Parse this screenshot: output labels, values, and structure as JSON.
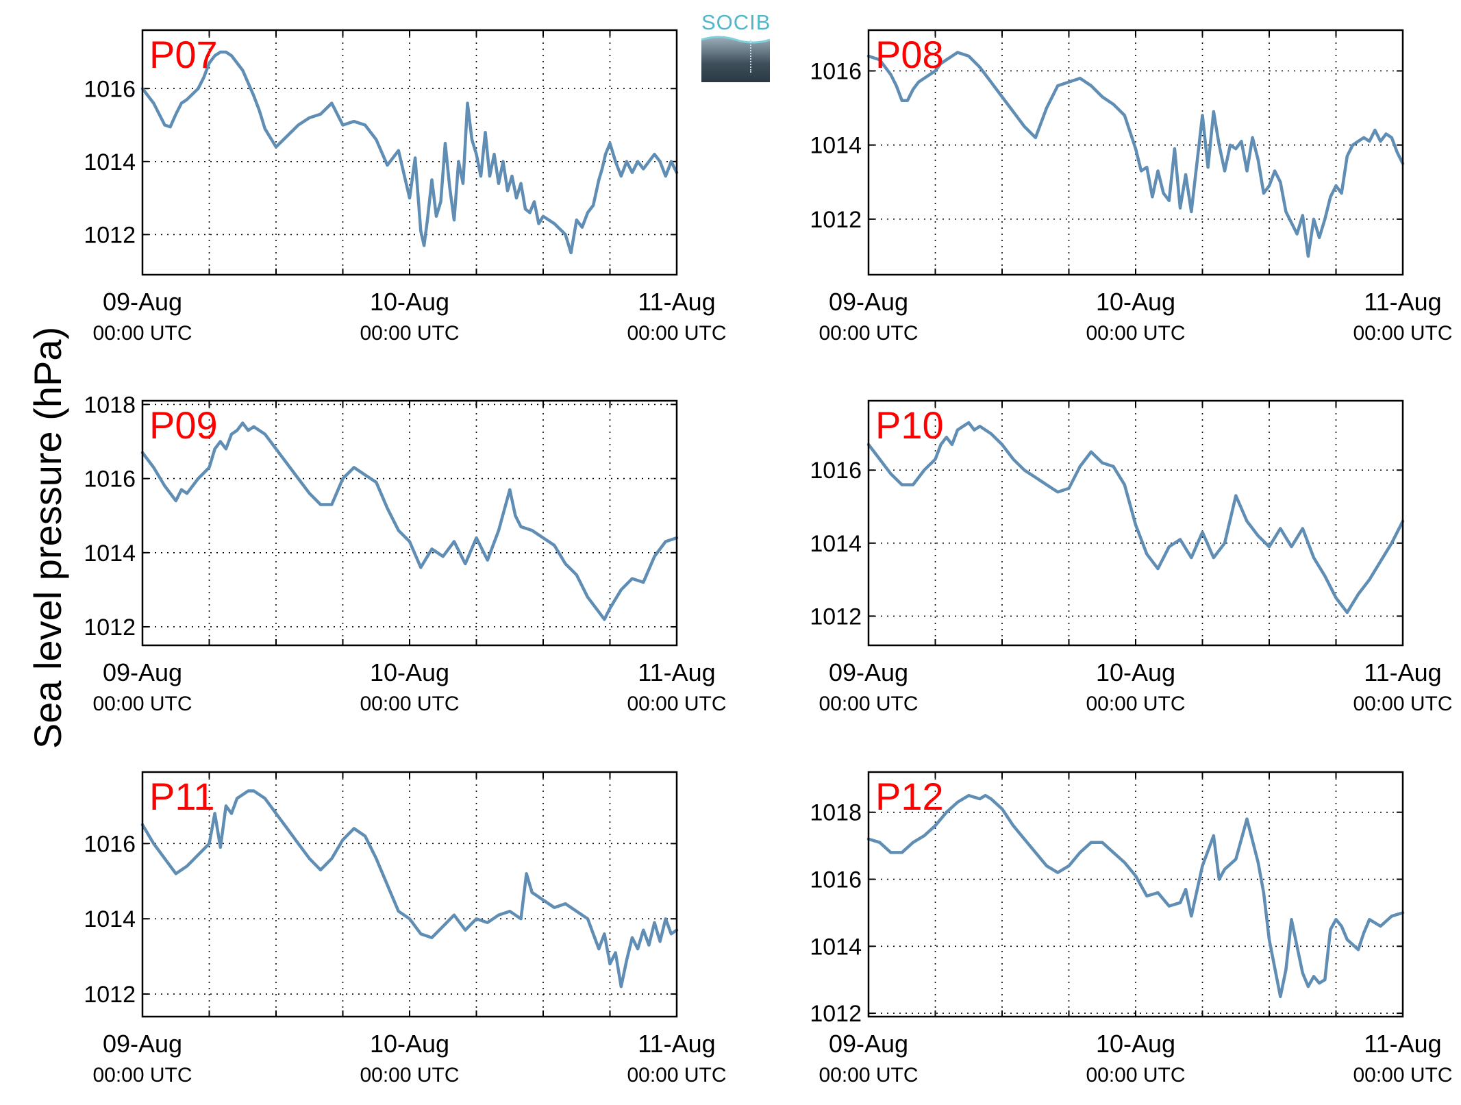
{
  "figure": {
    "ylabel": "Sea level pressure (hPa)",
    "logo": {
      "text": "SOCIB",
      "colors": {
        "text": "#4fb7c9",
        "box_top": "#9fb3bd",
        "box_bottom": "#2a3842"
      }
    }
  },
  "style": {
    "line_color": "#5f8db3",
    "panel_label_color": "#ff0000",
    "grid": "dotted"
  },
  "chart_data": [
    {
      "type": "line",
      "panel_label": "P07",
      "xlim": [
        "09-Aug 00:00",
        "11-Aug 00:00"
      ],
      "ylim": [
        1010.9,
        1017.6
      ],
      "yticks": [
        1012,
        1014,
        1016
      ],
      "xtick_labels": [
        {
          "x": 0,
          "date": "09-Aug",
          "time": "00:00 UTC"
        },
        {
          "x": 24,
          "date": "10-Aug",
          "time": "00:00 UTC"
        },
        {
          "x": 48,
          "date": "11-Aug",
          "time": "00:00 UTC"
        }
      ],
      "series": [
        {
          "x_unit": "hours since 09-Aug 00:00 UTC",
          "x": [
            0,
            1,
            2,
            2.5,
            3,
            3.5,
            4,
            5,
            5.5,
            6,
            6.5,
            7,
            7.5,
            8,
            9,
            10,
            10.5,
            11,
            12,
            13,
            14,
            15,
            16,
            17,
            18,
            19,
            20,
            21,
            22,
            23,
            24,
            24.5,
            25,
            25.3,
            25.6,
            26,
            26.4,
            26.8,
            27.2,
            27.6,
            28,
            28.4,
            28.8,
            29.2,
            29.6,
            30,
            30.4,
            30.8,
            31.2,
            31.6,
            32,
            32.4,
            32.8,
            33.2,
            33.6,
            34,
            34.4,
            34.8,
            35.2,
            35.6,
            36,
            37,
            38,
            38.5,
            39,
            39.5,
            40,
            40.5,
            41,
            41.3,
            41.6,
            42,
            42.5,
            43,
            43.5,
            44,
            44.5,
            45,
            46,
            46.5,
            47,
            47.5,
            48
          ],
          "y": [
            1016,
            1015.6,
            1015,
            1014.95,
            1015.3,
            1015.6,
            1015.7,
            1016,
            1016.3,
            1016.7,
            1016.9,
            1017,
            1017,
            1016.9,
            1016.5,
            1015.8,
            1015.4,
            1014.9,
            1014.4,
            1014.7,
            1015,
            1015.2,
            1015.3,
            1015.6,
            1015,
            1015.1,
            1015,
            1014.6,
            1013.9,
            1014.3,
            1013,
            1014.1,
            1012.1,
            1011.7,
            1012.4,
            1013.5,
            1012.5,
            1012.9,
            1014.5,
            1013.3,
            1012.4,
            1014,
            1013.4,
            1015.6,
            1014.6,
            1014.2,
            1013.6,
            1014.8,
            1013.6,
            1014.2,
            1013.4,
            1014,
            1013.2,
            1013.6,
            1013,
            1013.4,
            1012.7,
            1012.6,
            1012.9,
            1012.3,
            1012.5,
            1012.3,
            1012,
            1011.5,
            1012.4,
            1012.2,
            1012.6,
            1012.8,
            1013.5,
            1013.8,
            1014.2,
            1014.5,
            1014,
            1013.6,
            1014,
            1013.7,
            1014,
            1013.8,
            1014.2,
            1014,
            1013.6,
            1014,
            1013.7
          ]
        }
      ]
    },
    {
      "type": "line",
      "panel_label": "P08",
      "xlim": [
        "09-Aug 00:00",
        "11-Aug 00:00"
      ],
      "ylim": [
        1010.5,
        1017.1
      ],
      "yticks": [
        1012,
        1014,
        1016
      ],
      "xtick_labels": [
        {
          "x": 0,
          "date": "09-Aug",
          "time": "00:00 UTC"
        },
        {
          "x": 24,
          "date": "10-Aug",
          "time": "00:00 UTC"
        },
        {
          "x": 48,
          "date": "11-Aug",
          "time": "00:00 UTC"
        }
      ],
      "series": [
        {
          "x_unit": "hours since 09-Aug 00:00 UTC",
          "x": [
            0,
            1,
            2,
            2.5,
            3,
            3.5,
            4,
            4.5,
            5,
            5.5,
            6,
            6.5,
            7,
            7.5,
            8,
            9,
            10,
            11,
            12,
            13,
            14,
            15,
            16,
            17,
            18,
            19,
            20,
            21,
            22,
            23,
            24,
            24.5,
            25,
            25.5,
            26,
            26.5,
            27,
            27.5,
            28,
            28.5,
            29,
            29.5,
            30,
            30.5,
            31,
            31.5,
            32,
            32.5,
            33,
            33.5,
            34,
            34.5,
            35,
            35.5,
            36,
            36.5,
            37,
            37.5,
            38,
            38.5,
            39,
            39.5,
            40,
            40.5,
            41,
            41.5,
            42,
            42.5,
            43,
            43.5,
            44,
            44.5,
            45,
            45.5,
            46,
            46.5,
            47,
            47.5,
            48
          ],
          "y": [
            1016.4,
            1016.3,
            1015.9,
            1015.6,
            1015.2,
            1015.2,
            1015.5,
            1015.7,
            1015.8,
            1015.9,
            1016,
            1016.2,
            1016.3,
            1016.4,
            1016.5,
            1016.4,
            1016.1,
            1015.7,
            1015.3,
            1014.9,
            1014.5,
            1014.2,
            1015,
            1015.6,
            1015.7,
            1015.8,
            1015.6,
            1015.3,
            1015.1,
            1014.8,
            1013.9,
            1013.3,
            1013.4,
            1012.6,
            1013.3,
            1012.7,
            1012.5,
            1013.9,
            1012.3,
            1013.2,
            1012.2,
            1013.5,
            1014.8,
            1013.4,
            1014.9,
            1014,
            1013.3,
            1014,
            1013.9,
            1014.1,
            1013.3,
            1014.2,
            1013.6,
            1012.7,
            1012.9,
            1013.3,
            1013,
            1012.2,
            1011.9,
            1011.6,
            1012.1,
            1011,
            1012,
            1011.5,
            1012,
            1012.6,
            1012.9,
            1012.7,
            1013.7,
            1014,
            1014.1,
            1014.2,
            1014.1,
            1014.4,
            1014.1,
            1014.3,
            1014.2,
            1013.8,
            1013.5
          ]
        }
      ]
    },
    {
      "type": "line",
      "panel_label": "P09",
      "xlim": [
        "09-Aug 00:00",
        "11-Aug 00:00"
      ],
      "ylim": [
        1011.5,
        1018.1
      ],
      "yticks": [
        1012,
        1014,
        1016,
        1018
      ],
      "xtick_labels": [
        {
          "x": 0,
          "date": "09-Aug",
          "time": "00:00 UTC"
        },
        {
          "x": 24,
          "date": "10-Aug",
          "time": "00:00 UTC"
        },
        {
          "x": 48,
          "date": "11-Aug",
          "time": "00:00 UTC"
        }
      ],
      "series": [
        {
          "x_unit": "hours since 09-Aug 00:00 UTC",
          "x": [
            0,
            1,
            2,
            3,
            3.5,
            4,
            5,
            6,
            6.5,
            7,
            7.5,
            8,
            8.5,
            9,
            9.5,
            10,
            11,
            12,
            13,
            14,
            15,
            16,
            17,
            18,
            19,
            20,
            21,
            22,
            23,
            24,
            25,
            26,
            27,
            28,
            29,
            30,
            31,
            32,
            33,
            33.5,
            34,
            35,
            36,
            37,
            38,
            39,
            40,
            41,
            41.5,
            42,
            43,
            44,
            45,
            46,
            47,
            48
          ],
          "y": [
            1016.7,
            1016.3,
            1015.8,
            1015.4,
            1015.7,
            1015.6,
            1016,
            1016.3,
            1016.8,
            1017,
            1016.8,
            1017.2,
            1017.3,
            1017.5,
            1017.3,
            1017.4,
            1017.2,
            1016.8,
            1016.4,
            1016,
            1015.6,
            1015.3,
            1015.3,
            1016,
            1016.3,
            1016.1,
            1015.9,
            1015.2,
            1014.6,
            1014.3,
            1013.6,
            1014.1,
            1013.9,
            1014.3,
            1013.7,
            1014.4,
            1013.8,
            1014.6,
            1015.7,
            1015,
            1014.7,
            1014.6,
            1014.4,
            1014.2,
            1013.7,
            1013.4,
            1012.8,
            1012.4,
            1012.2,
            1012.5,
            1013,
            1013.3,
            1013.2,
            1013.9,
            1014.3,
            1014.4
          ]
        }
      ]
    },
    {
      "type": "line",
      "panel_label": "P10",
      "xlim": [
        "09-Aug 00:00",
        "11-Aug 00:00"
      ],
      "ylim": [
        1011.2,
        1017.9
      ],
      "yticks": [
        1012,
        1014,
        1016
      ],
      "xtick_labels": [
        {
          "x": 0,
          "date": "09-Aug",
          "time": "00:00 UTC"
        },
        {
          "x": 24,
          "date": "10-Aug",
          "time": "00:00 UTC"
        },
        {
          "x": 48,
          "date": "11-Aug",
          "time": "00:00 UTC"
        }
      ],
      "series": [
        {
          "x_unit": "hours since 09-Aug 00:00 UTC",
          "x": [
            0,
            1,
            2,
            3,
            4,
            5,
            6,
            6.5,
            7,
            7.5,
            8,
            8.5,
            9,
            9.5,
            10,
            11,
            12,
            13,
            14,
            15,
            16,
            17,
            18,
            19,
            20,
            21,
            22,
            23,
            24,
            25,
            26,
            27,
            28,
            29,
            30,
            31,
            32,
            33,
            34,
            35,
            36,
            37,
            38,
            39,
            40,
            41,
            42,
            43,
            44,
            45,
            46,
            47,
            48
          ],
          "y": [
            1016.7,
            1016.3,
            1015.9,
            1015.6,
            1015.6,
            1016,
            1016.3,
            1016.7,
            1016.9,
            1016.7,
            1017.1,
            1017.2,
            1017.3,
            1017.1,
            1017.2,
            1017,
            1016.7,
            1016.3,
            1016,
            1015.8,
            1015.6,
            1015.4,
            1015.5,
            1016.1,
            1016.5,
            1016.2,
            1016.1,
            1015.6,
            1014.5,
            1013.7,
            1013.3,
            1013.9,
            1014.1,
            1013.6,
            1014.3,
            1013.6,
            1014,
            1015.3,
            1014.6,
            1014.2,
            1013.9,
            1014.4,
            1013.9,
            1014.4,
            1013.6,
            1013.1,
            1012.5,
            1012.1,
            1012.6,
            1013,
            1013.5,
            1014,
            1014.6
          ]
        }
      ]
    },
    {
      "type": "line",
      "panel_label": "P11",
      "xlim": [
        "09-Aug 00:00",
        "11-Aug 00:00"
      ],
      "ylim": [
        1011.4,
        1017.9
      ],
      "yticks": [
        1012,
        1014,
        1016
      ],
      "xtick_labels": [
        {
          "x": 0,
          "date": "09-Aug",
          "time": "00:00 UTC"
        },
        {
          "x": 24,
          "date": "10-Aug",
          "time": "00:00 UTC"
        },
        {
          "x": 48,
          "date": "11-Aug",
          "time": "00:00 UTC"
        }
      ],
      "series": [
        {
          "x_unit": "hours since 09-Aug 00:00 UTC",
          "x": [
            0,
            1,
            2,
            3,
            4,
            5,
            6,
            6.5,
            7,
            7.5,
            8,
            8.5,
            9,
            9.5,
            10,
            11,
            12,
            13,
            14,
            15,
            16,
            17,
            18,
            19,
            20,
            21,
            22,
            23,
            24,
            25,
            26,
            27,
            28,
            29,
            30,
            31,
            32,
            33,
            34,
            34.5,
            35,
            36,
            37,
            38,
            39,
            40,
            40.5,
            41,
            41.5,
            42,
            42.5,
            43,
            43.5,
            44,
            44.5,
            45,
            45.5,
            46,
            46.5,
            47,
            47.5,
            48
          ],
          "y": [
            1016.5,
            1016,
            1015.6,
            1015.2,
            1015.4,
            1015.7,
            1016,
            1016.8,
            1015.9,
            1017,
            1016.8,
            1017.2,
            1017.3,
            1017.4,
            1017.4,
            1017.2,
            1016.8,
            1016.4,
            1016,
            1015.6,
            1015.3,
            1015.6,
            1016.1,
            1016.4,
            1016.2,
            1015.6,
            1014.9,
            1014.2,
            1014,
            1013.6,
            1013.5,
            1013.8,
            1014.1,
            1013.7,
            1014,
            1013.9,
            1014.1,
            1014.2,
            1014,
            1015.2,
            1014.7,
            1014.5,
            1014.3,
            1014.4,
            1014.2,
            1014,
            1013.6,
            1013.2,
            1013.6,
            1012.8,
            1013.1,
            1012.2,
            1012.9,
            1013.5,
            1013.2,
            1013.7,
            1013.3,
            1013.9,
            1013.4,
            1014,
            1013.6,
            1013.7
          ]
        }
      ]
    },
    {
      "type": "line",
      "panel_label": "P12",
      "xlim": [
        "09-Aug 00:00",
        "11-Aug 00:00"
      ],
      "ylim": [
        1011.9,
        1019.2
      ],
      "yticks": [
        1012,
        1014,
        1016,
        1018
      ],
      "xtick_labels": [
        {
          "x": 0,
          "date": "09-Aug",
          "time": "00:00 UTC"
        },
        {
          "x": 24,
          "date": "10-Aug",
          "time": "00:00 UTC"
        },
        {
          "x": 48,
          "date": "11-Aug",
          "time": "00:00 UTC"
        }
      ],
      "series": [
        {
          "x_unit": "hours since 09-Aug 00:00 UTC",
          "x": [
            0,
            1,
            2,
            3,
            4,
            5,
            6,
            7,
            8,
            9,
            10,
            10.5,
            11,
            12,
            13,
            14,
            15,
            16,
            17,
            18,
            19,
            20,
            21,
            22,
            23,
            24,
            25,
            26,
            27,
            28,
            28.5,
            29,
            30,
            31,
            31.5,
            32,
            33,
            34,
            35,
            35.5,
            36,
            37,
            37.5,
            38,
            38.5,
            39,
            39.5,
            40,
            40.5,
            41,
            41.5,
            42,
            42.5,
            43,
            44,
            44.5,
            45,
            46,
            47,
            48
          ],
          "y": [
            1017.2,
            1017.1,
            1016.8,
            1016.8,
            1017.1,
            1017.3,
            1017.6,
            1018,
            1018.3,
            1018.5,
            1018.4,
            1018.5,
            1018.4,
            1018.1,
            1017.6,
            1017.2,
            1016.8,
            1016.4,
            1016.2,
            1016.4,
            1016.8,
            1017.1,
            1017.1,
            1016.8,
            1016.5,
            1016.1,
            1015.5,
            1015.6,
            1015.2,
            1015.3,
            1015.7,
            1014.9,
            1016.4,
            1017.3,
            1016,
            1016.3,
            1016.6,
            1017.8,
            1016.5,
            1015.6,
            1014.2,
            1012.5,
            1013.3,
            1014.8,
            1014,
            1013.2,
            1012.8,
            1013.1,
            1012.9,
            1013,
            1014.5,
            1014.8,
            1014.6,
            1014.2,
            1013.9,
            1014.4,
            1014.8,
            1014.6,
            1014.9,
            1015
          ]
        }
      ]
    }
  ]
}
